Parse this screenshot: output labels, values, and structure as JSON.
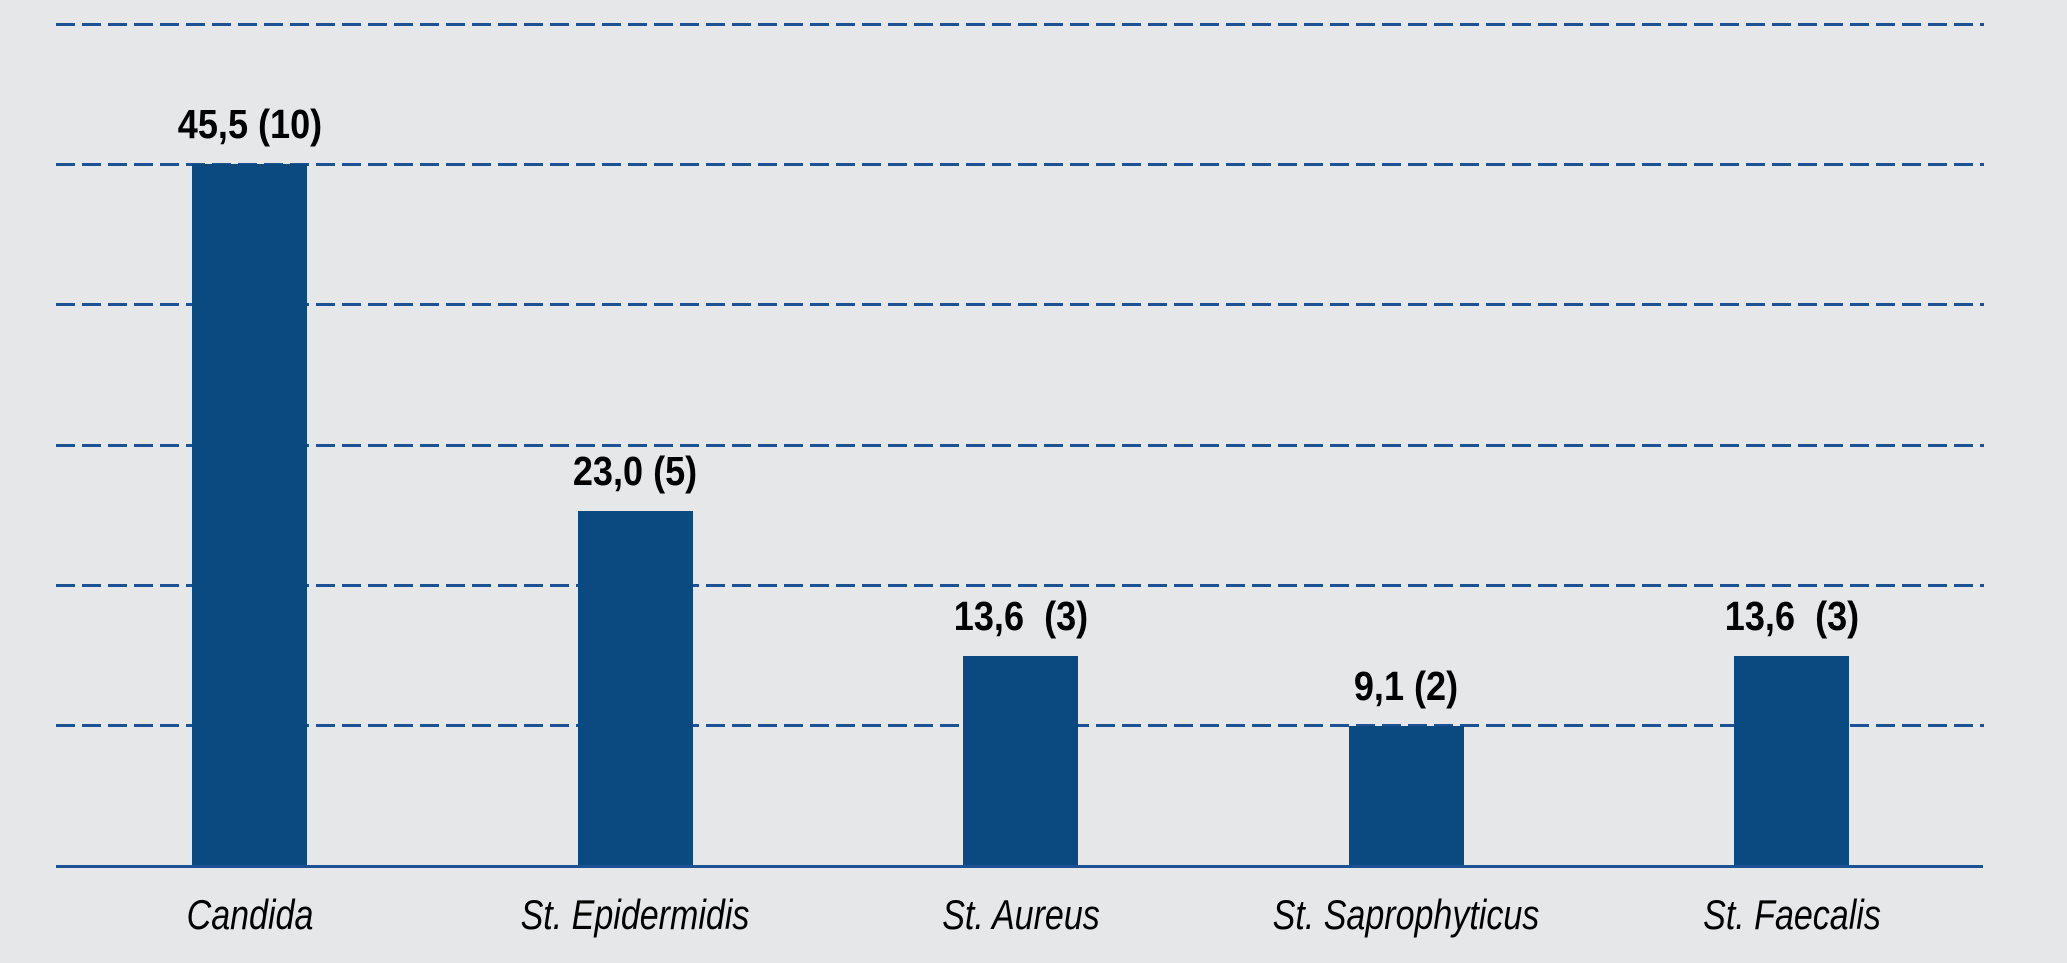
{
  "chart_data": {
    "type": "bar",
    "title": "",
    "categories": [
      "Candida",
      "St. Epidermidis",
      "St. Aureus",
      "St. Saprophyticus",
      "St. Faecalis"
    ],
    "values": [
      45.5,
      23.0,
      13.6,
      9.1,
      13.6
    ],
    "counts": [
      10,
      5,
      3,
      2,
      3
    ],
    "value_labels": [
      "45,5 (10)",
      "23,0 (5)",
      "13,6  (3)",
      "9,1 (2)",
      "13,6  (3)"
    ],
    "ylim": [
      0,
      54.6
    ],
    "gridline_interval": 9.1,
    "gridline_count": 6,
    "grid": "dashed-horizontal",
    "legend": "none",
    "xlabel": "",
    "ylabel": "",
    "colors": {
      "bar": "#0b4a80",
      "gridline": "#1c5294",
      "baseline": "#1c5294",
      "text": "#000000",
      "background": "#e6e7e9"
    }
  }
}
